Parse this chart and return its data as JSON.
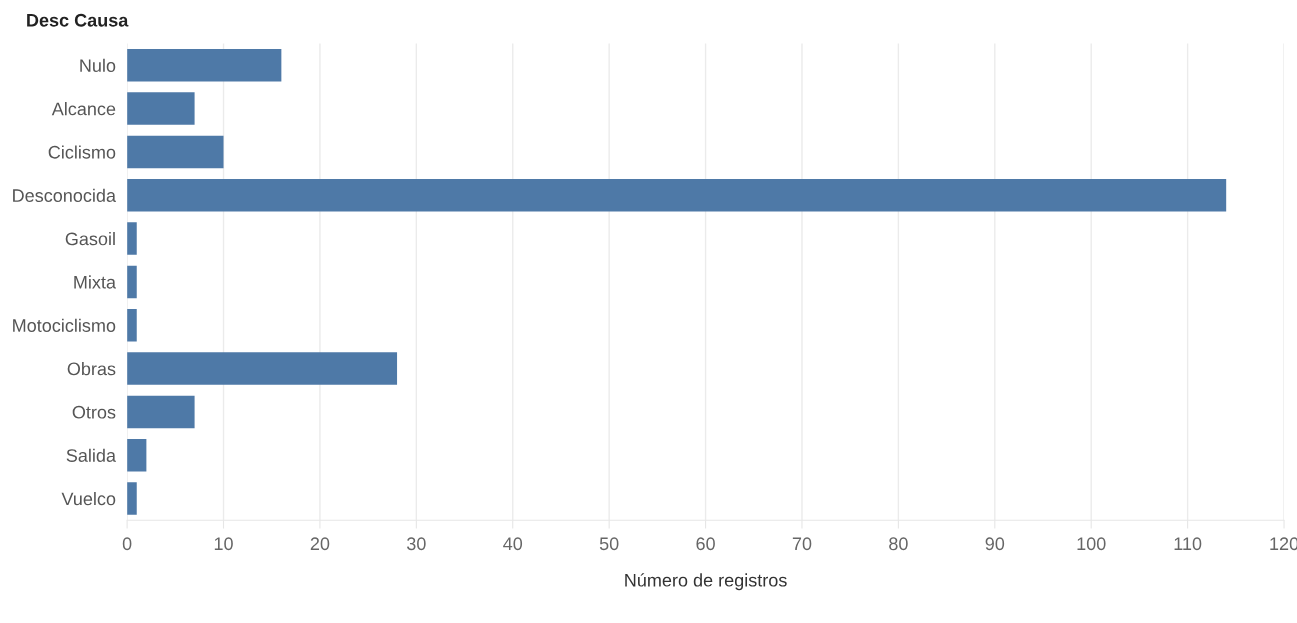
{
  "chart_data": {
    "type": "bar",
    "orientation": "horizontal",
    "ylabel": "Desc Causa",
    "xlabel": "Número de registros",
    "categories": [
      "Nulo",
      "Alcance",
      "Ciclismo",
      "Desconocida",
      "Gasoil",
      "Mixta",
      "Motociclismo",
      "Obras",
      "Otros",
      "Salida",
      "Vuelco"
    ],
    "values": [
      16,
      7,
      10,
      114,
      1,
      1,
      1,
      28,
      7,
      2,
      1
    ],
    "color": "#4e79a7",
    "xlim": [
      0,
      120
    ],
    "xticks": [
      0,
      10,
      20,
      30,
      40,
      50,
      60,
      70,
      80,
      90,
      100,
      110,
      120
    ],
    "grid": "x"
  }
}
